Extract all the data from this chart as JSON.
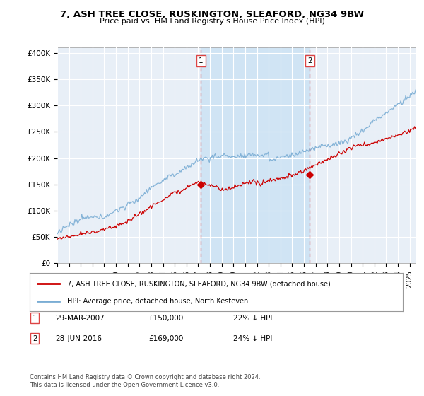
{
  "title1": "7, ASH TREE CLOSE, RUSKINGTON, SLEAFORD, NG34 9BW",
  "title2": "Price paid vs. HM Land Registry's House Price Index (HPI)",
  "ylabel_ticks": [
    "£0",
    "£50K",
    "£100K",
    "£150K",
    "£200K",
    "£250K",
    "£300K",
    "£350K",
    "£400K"
  ],
  "ylabel_values": [
    0,
    50000,
    100000,
    150000,
    200000,
    250000,
    300000,
    350000,
    400000
  ],
  "ylim": [
    0,
    410000
  ],
  "xlim_start": 1995.0,
  "xlim_end": 2025.5,
  "hpi_color": "#7aadd4",
  "hpi_shade_color": "#d0e4f4",
  "price_color": "#cc0000",
  "vline_color": "#dd4444",
  "transaction1_x": 2007.24,
  "transaction1_y": 150000,
  "transaction2_x": 2016.49,
  "transaction2_y": 169000,
  "legend_line1": "7, ASH TREE CLOSE, RUSKINGTON, SLEAFORD, NG34 9BW (detached house)",
  "legend_line2": "HPI: Average price, detached house, North Kesteven",
  "table_rows": [
    [
      "1",
      "29-MAR-2007",
      "£150,000",
      "22% ↓ HPI"
    ],
    [
      "2",
      "28-JUN-2016",
      "£169,000",
      "24% ↓ HPI"
    ]
  ],
  "footer": "Contains HM Land Registry data © Crown copyright and database right 2024.\nThis data is licensed under the Open Government Licence v3.0.",
  "plot_bg": "#e8eff7",
  "grid_color": "#ffffff",
  "fig_bg": "#ffffff"
}
